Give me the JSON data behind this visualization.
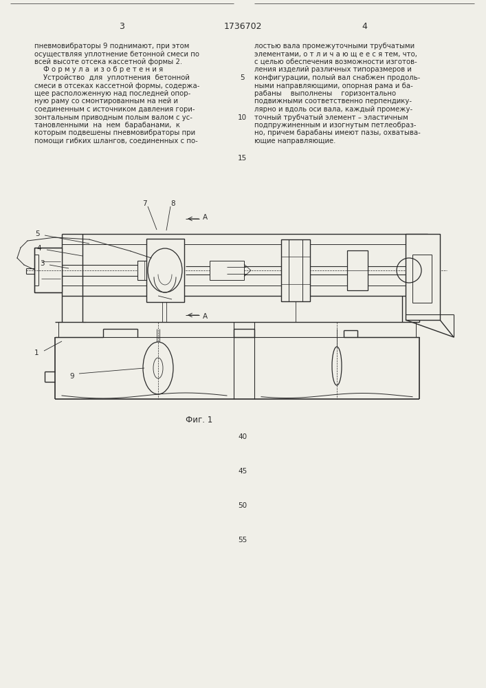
{
  "bg_color": "#f0efe8",
  "lc": "#2a2a2a",
  "header": {
    "left_num": "3",
    "center_num": "1736702",
    "right_num": "4"
  },
  "text_col1": [
    "пневмовибраторы 9 поднимают, при этом",
    "осуществляя уплотнение бетонной смеси по",
    "всей высоте отсека кассетной формы 2.",
    "    Ф о р м у л а  и з о б р е т е н и я",
    "    Устройство  для  уплотнения  бетонной",
    "смеси в отсеках кассетной формы, содержа-",
    "щее расположенную над последней опор-",
    "ную раму со смонтированным на ней и",
    "соединенным с источником давления гори-",
    "зонтальным приводным полым валом с ус-",
    "тановленными  на  нем  барабанами,  к",
    "которым подвешены пневмовибраторы при",
    "помощи гибких шлангов, соединенных с по-"
  ],
  "text_col2": [
    "лостью вала промежуточными трубчатыми",
    "элементами, о т л и ч а ю щ е е с я тем, что,",
    "с целью обеспечения возможности изготов-",
    "ления изделий различных типоразмеров и",
    "конфигурации, полый вал снабжен продоль-",
    "ными направляющими, опорная рама и ба-",
    "рабаны    выполнены    горизонтально",
    "подвижными соответственно перпендику-",
    "лярно и вдоль оси вала, каждый промежу-",
    "точный трубчатый элемент – эластичным",
    "подпружиненным и изогнутым петлеобраз-",
    "но, причем барабаны имеют пазы, охватыва-",
    "ющие направляющие."
  ],
  "line_nums": [
    {
      "text": "5",
      "row": 4
    },
    {
      "text": "10",
      "row": 9
    }
  ],
  "fig_label": "Фиг. 1",
  "margin_nums": [
    "15",
    "40",
    "45",
    "50",
    "55"
  ]
}
